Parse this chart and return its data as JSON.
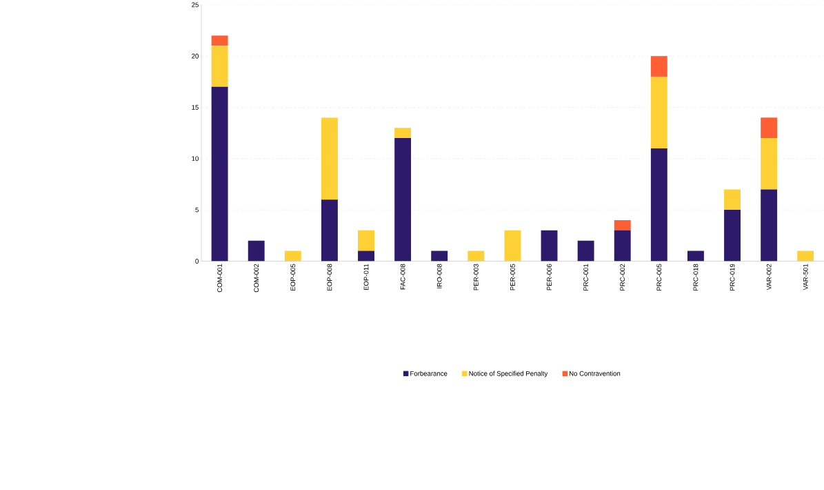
{
  "chart_data": {
    "type": "bar",
    "stacked": true,
    "categories": [
      "COM-001",
      "COM-002",
      "EOP-005",
      "EOP-008",
      "EOP-011",
      "FAC-008",
      "IRO-008",
      "PER-003",
      "PER-005",
      "PER-006",
      "PRC-001",
      "PRC-002",
      "PRC-005",
      "PRC-018",
      "PRC-019",
      "VAR-002",
      "VAR-501"
    ],
    "series": [
      {
        "name": "Forbearance",
        "color": "#2e1a6b",
        "values": [
          17,
          2,
          0,
          6,
          1,
          12,
          1,
          0,
          0,
          3,
          2,
          3,
          11,
          1,
          5,
          7,
          0
        ]
      },
      {
        "name": "Notice of Specified Penalty",
        "color": "#fdd035",
        "values": [
          4,
          0,
          1,
          8,
          2,
          1,
          0,
          1,
          3,
          0,
          0,
          0,
          7,
          0,
          2,
          5,
          1
        ]
      },
      {
        "name": "No Contravention",
        "color": "#fe5e34",
        "values": [
          1,
          0,
          0,
          0,
          0,
          0,
          0,
          0,
          0,
          0,
          0,
          1,
          2,
          0,
          0,
          2,
          0
        ]
      }
    ],
    "ylim": [
      0,
      25
    ],
    "yticks": [
      0,
      5,
      10,
      15,
      20,
      25
    ],
    "grid": "y",
    "legend": "bottom"
  }
}
